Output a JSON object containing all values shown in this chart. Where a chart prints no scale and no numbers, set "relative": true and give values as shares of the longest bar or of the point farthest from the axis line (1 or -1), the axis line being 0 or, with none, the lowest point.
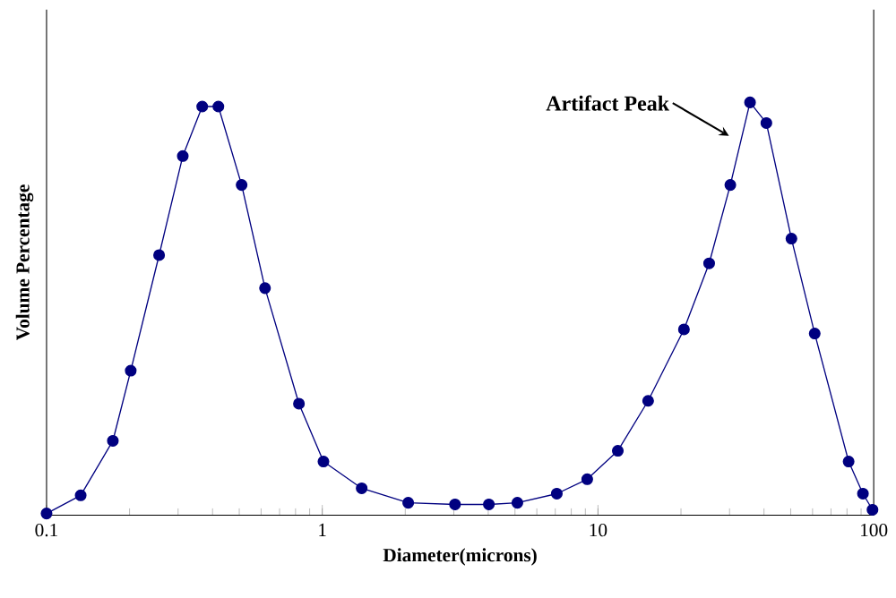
{
  "chart_data": {
    "type": "line",
    "xlabel": "Diameter(microns)",
    "ylabel": "Volume Percentage",
    "relative": true,
    "log": "x",
    "xlim": [
      0.1,
      100
    ],
    "xticks": [
      0.1,
      1,
      10,
      100
    ],
    "tick_labels": "x",
    "marker": "circle",
    "line_style": "solid",
    "grid": false,
    "x": [
      0.1,
      0.133,
      0.174,
      0.202,
      0.256,
      0.312,
      0.367,
      0.42,
      0.51,
      0.62,
      0.823,
      1.01,
      1.39,
      2.05,
      3.03,
      4.02,
      5.1,
      7.09,
      9.14,
      11.8,
      15.2,
      20.5,
      25.3,
      30.2,
      35.6,
      40.8,
      50.3,
      61.1,
      81.1,
      91.4,
      99
    ],
    "series": [
      {
        "color": "#000080",
        "values": [
          0.004,
          0.048,
          0.18,
          0.35,
          0.63,
          0.87,
          0.99,
          0.99,
          0.8,
          0.55,
          0.27,
          0.13,
          0.065,
          0.03,
          0.026,
          0.026,
          0.03,
          0.052,
          0.087,
          0.156,
          0.277,
          0.45,
          0.61,
          0.8,
          1.0,
          0.95,
          0.67,
          0.44,
          0.13,
          0.052,
          0.013
        ]
      }
    ],
    "annotations": [
      "Artifact Peak"
    ]
  }
}
